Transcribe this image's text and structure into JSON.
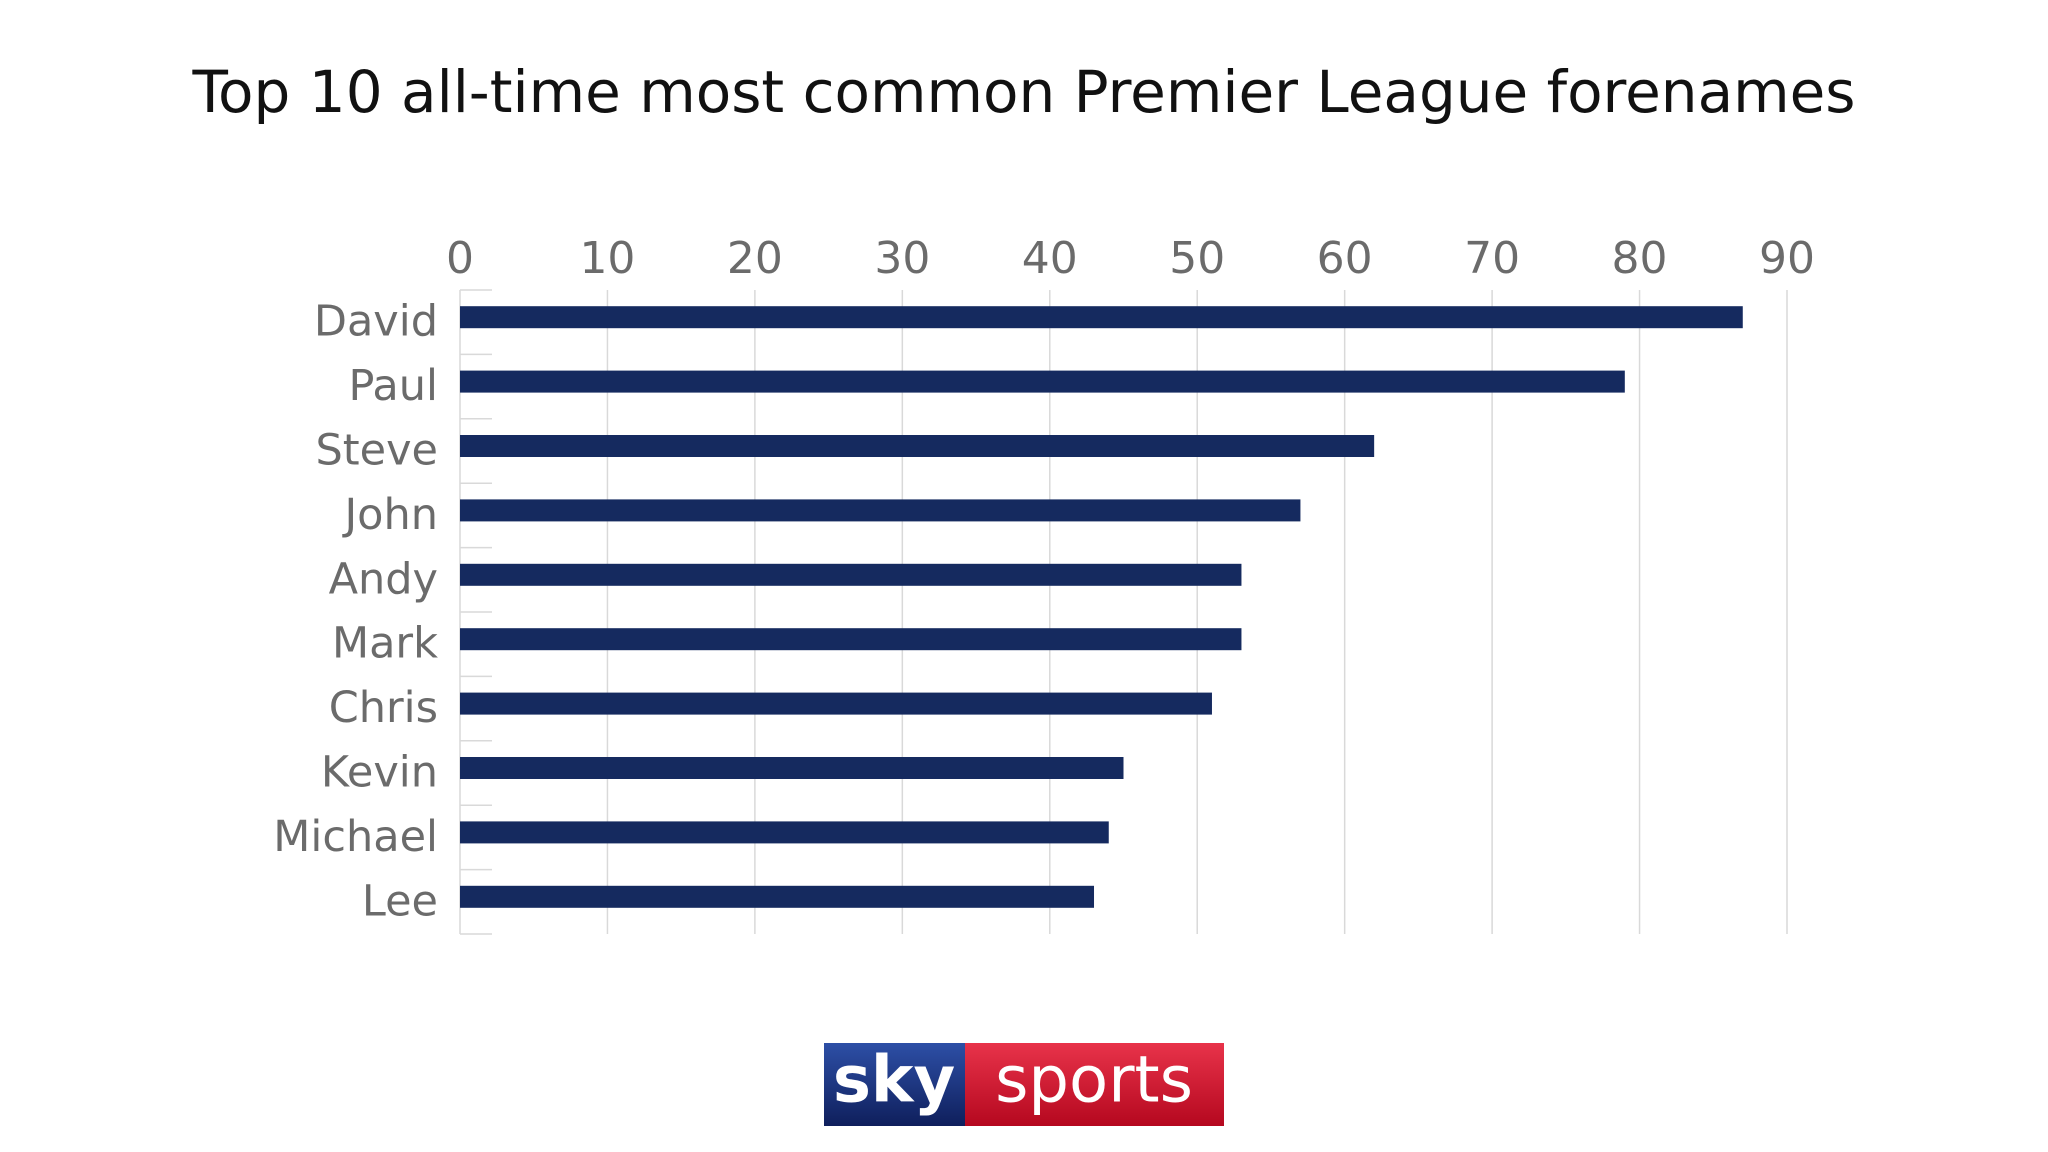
{
  "chart_data": {
    "type": "bar",
    "orientation": "horizontal",
    "title": "Top 10 all-time most common Premier League forenames",
    "categories": [
      "David",
      "Paul",
      "Steve",
      "John",
      "Andy",
      "Mark",
      "Chris",
      "Kevin",
      "Michael",
      "Lee"
    ],
    "values": [
      87,
      79,
      62,
      57,
      53,
      53,
      51,
      45,
      44,
      43
    ],
    "color": "#152a5f",
    "xlim": [
      0,
      90
    ],
    "xticks": [
      0,
      10,
      20,
      30,
      40,
      50,
      60,
      70,
      80,
      90
    ],
    "grid": true
  },
  "logo": {
    "left": "sky",
    "right": "sports"
  }
}
